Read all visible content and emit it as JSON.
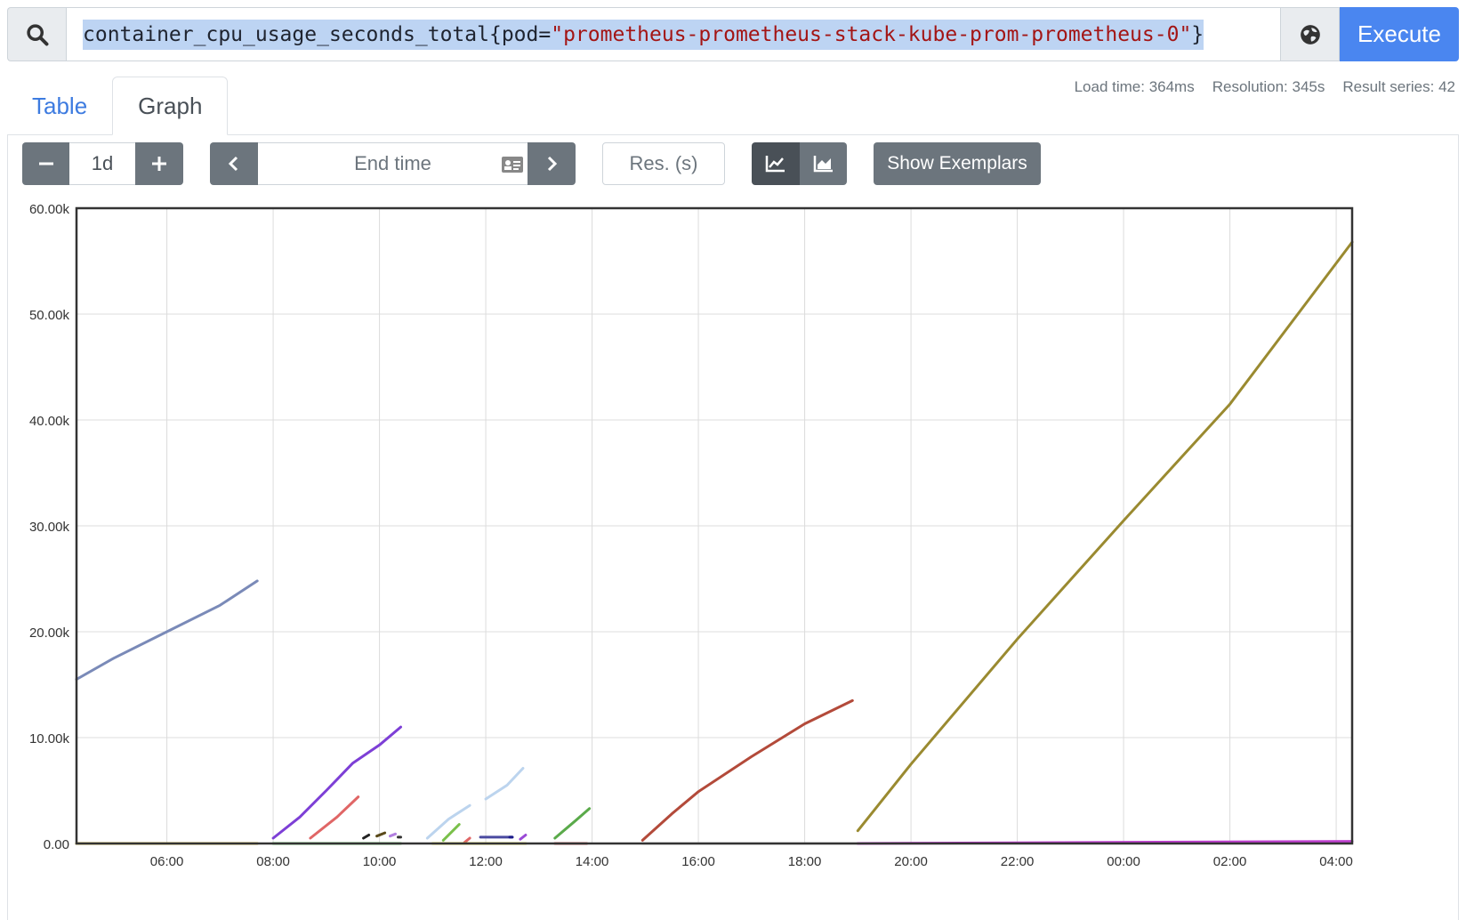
{
  "query": {
    "metric": "container_cpu_usage_seconds_total",
    "label_key": "pod",
    "label_value": "\"prometheus-prometheus-stack-kube-prom-prometheus-0\"",
    "execute_label": "Execute"
  },
  "tabs": [
    {
      "label": "Table",
      "active": false
    },
    {
      "label": "Graph",
      "active": true
    }
  ],
  "stats": {
    "load_time": "Load time: 364ms",
    "resolution": "Resolution: 345s",
    "result_series": "Result series: 42"
  },
  "controls": {
    "range": "1d",
    "end_time_placeholder": "End time",
    "resolution_placeholder": "Res. (s)",
    "show_exemplars": "Show Exemplars"
  },
  "chart_data": {
    "type": "line",
    "x_ticks": [
      "06:00",
      "08:00",
      "10:00",
      "12:00",
      "14:00",
      "16:00",
      "18:00",
      "20:00",
      "22:00",
      "00:00",
      "02:00",
      "04:00"
    ],
    "y_ticks": [
      "0.00",
      "10.00k",
      "20.00k",
      "30.00k",
      "40.00k",
      "50.00k",
      "60.00k"
    ],
    "ylim": [
      0,
      60000
    ],
    "xlim_hours": [
      4.3,
      28.3
    ],
    "grid": true,
    "series": [
      {
        "color": "#7a8ab8",
        "points": [
          [
            4.3,
            15500
          ],
          [
            5.0,
            17500
          ],
          [
            6.0,
            20000
          ],
          [
            7.0,
            22500
          ],
          [
            7.7,
            24800
          ]
        ]
      },
      {
        "color": "#d4b83a",
        "points": [
          [
            4.3,
            0
          ],
          [
            7.7,
            0
          ]
        ]
      },
      {
        "color": "#7d3fd6",
        "points": [
          [
            8.0,
            500
          ],
          [
            8.5,
            2500
          ],
          [
            9.0,
            5000
          ],
          [
            9.5,
            7600
          ],
          [
            10.0,
            9300
          ],
          [
            10.4,
            11000
          ]
        ]
      },
      {
        "color": "#e06666",
        "points": [
          [
            8.7,
            500
          ],
          [
            9.2,
            2500
          ],
          [
            9.6,
            4400
          ]
        ]
      },
      {
        "color": "#66cc66",
        "points": [
          [
            8.0,
            0
          ],
          [
            10.4,
            0
          ]
        ]
      },
      {
        "color": "#222222",
        "points": [
          [
            9.7,
            500
          ],
          [
            9.8,
            800
          ]
        ]
      },
      {
        "color": "#5a4a1a",
        "points": [
          [
            9.95,
            700
          ],
          [
            10.1,
            1000
          ]
        ]
      },
      {
        "color": "#b27fe0",
        "points": [
          [
            10.2,
            700
          ],
          [
            10.3,
            900
          ]
        ]
      },
      {
        "color": "#333333",
        "points": [
          [
            10.35,
            600
          ],
          [
            10.4,
            600
          ]
        ]
      },
      {
        "color": "#bcd4ee",
        "points": [
          [
            10.9,
            500
          ],
          [
            11.3,
            2300
          ],
          [
            11.7,
            3600
          ]
        ]
      },
      {
        "color": "#bcd4ee",
        "points": [
          [
            12.0,
            4200
          ],
          [
            12.4,
            5500
          ],
          [
            12.7,
            7100
          ]
        ]
      },
      {
        "color": "#7ac04a",
        "points": [
          [
            11.2,
            300
          ],
          [
            11.5,
            1800
          ]
        ]
      },
      {
        "color": "#e06666",
        "points": [
          [
            11.6,
            100
          ],
          [
            11.7,
            500
          ]
        ]
      },
      {
        "color": "#4a4aa0",
        "points": [
          [
            11.9,
            600
          ],
          [
            12.5,
            600
          ]
        ]
      },
      {
        "color": "#1a1a8a",
        "points": [
          [
            12.45,
            600
          ],
          [
            12.5,
            600
          ]
        ]
      },
      {
        "color": "#9a4ad6",
        "points": [
          [
            12.65,
            400
          ],
          [
            12.75,
            800
          ]
        ]
      },
      {
        "color": "#e8e04a",
        "points": [
          [
            11.0,
            0
          ],
          [
            12.75,
            0
          ]
        ]
      },
      {
        "color": "#5aaa4a",
        "points": [
          [
            13.3,
            500
          ],
          [
            13.7,
            2200
          ],
          [
            13.95,
            3300
          ]
        ]
      },
      {
        "color": "#d05a5a",
        "points": [
          [
            13.3,
            0
          ],
          [
            13.9,
            0
          ]
        ]
      },
      {
        "color": "#b34a3a",
        "points": [
          [
            14.95,
            300
          ],
          [
            15.5,
            2800
          ],
          [
            16.0,
            4900
          ],
          [
            17.0,
            8200
          ],
          [
            18.0,
            11300
          ],
          [
            18.9,
            13500
          ]
        ]
      },
      {
        "color": "#dddddd",
        "points": [
          [
            14.95,
            0
          ],
          [
            19.0,
            0
          ]
        ]
      },
      {
        "color": "#9a8a30",
        "points": [
          [
            19.0,
            1200
          ],
          [
            20.0,
            7500
          ],
          [
            22.0,
            19300
          ],
          [
            24.0,
            30500
          ],
          [
            26.0,
            41500
          ],
          [
            28.3,
            56800
          ]
        ]
      },
      {
        "color": "#c040d0",
        "points": [
          [
            19.0,
            0
          ],
          [
            28.3,
            200
          ]
        ]
      }
    ]
  }
}
